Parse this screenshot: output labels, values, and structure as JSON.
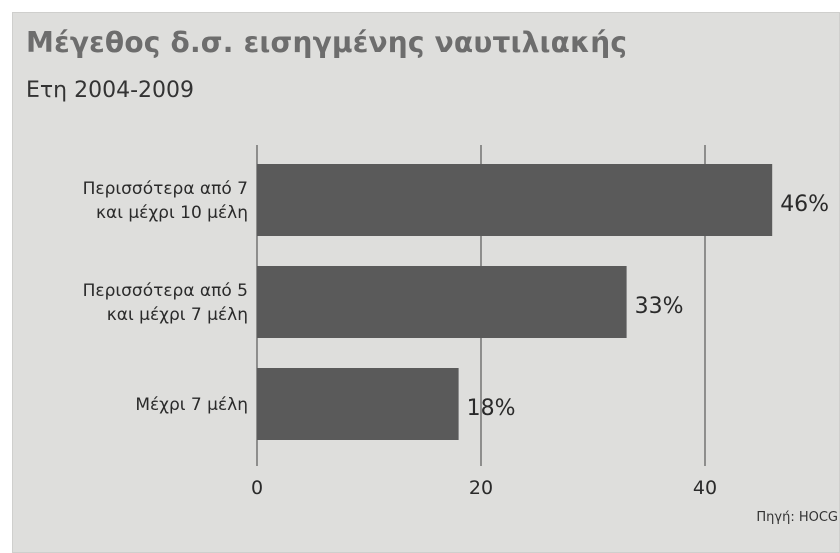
{
  "title": "Μέγεθος δ.σ. εισηγμένης ναυτιλιακής",
  "subtitle": "Ετη 2004-2009",
  "source": "Πηγή: HOCG",
  "colors": {
    "background": "#dededc",
    "bar": "#5a5a5a",
    "gridline": "#6b6b6b",
    "title": "#6d6d6d"
  },
  "chart_data": {
    "type": "bar",
    "orientation": "horizontal",
    "categories": [
      [
        "Περισσότερα από 7",
        "και μέχρι 10 μέλη"
      ],
      [
        "Περισσότερα από 5",
        "και μέχρι 7 μέλη"
      ],
      [
        "Μέχρι 7 μέλη"
      ]
    ],
    "values": [
      46,
      33,
      18
    ],
    "value_labels": [
      "46%",
      "33%",
      "18%"
    ],
    "xticks": [
      0,
      20,
      40
    ],
    "xlim": [
      0,
      47
    ],
    "grid": true
  }
}
